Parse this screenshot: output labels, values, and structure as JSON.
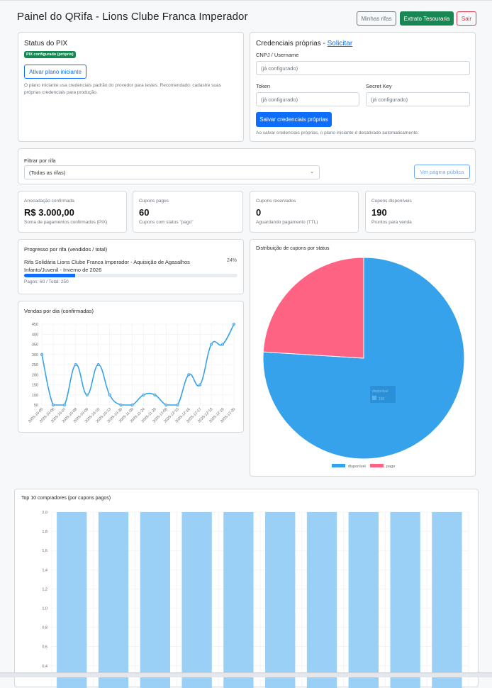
{
  "header": {
    "title": "Painel do QRifa - Lions Clube Franca Imperador",
    "buttons": {
      "my_raffles": "Minhas rifas",
      "treasury": "Extrato Tesouraria",
      "logout": "Sair"
    }
  },
  "pix_status": {
    "title": "Status do PIX",
    "badge": "PIX configurado (próprio)",
    "activate_button": "Ativar plano iniciante",
    "note": "O plano iniciante usa credenciais padrão do provedor para testes. Recomendado: cadastre suas próprias credenciais para produção."
  },
  "credentials": {
    "title": "Credenciais próprias - ",
    "link": "Solicitar",
    "cnpj_label": "CNPJ / Username",
    "cnpj_placeholder": "(já configurado)",
    "token_label": "Token",
    "token_placeholder": "(já configurado)",
    "secret_label": "Secret Key",
    "secret_placeholder": "(já configurado)",
    "save_button": "Salvar credenciais próprias",
    "note": "Ao salvar credenciais próprias, o plano iniciante é desativado automaticamente."
  },
  "filter": {
    "label": "Filtrar por rifa",
    "selected": "(Todas as rifas)",
    "public_button": "Ver página pública"
  },
  "stats": [
    {
      "label": "Arrecadação confirmada",
      "value": "R$ 3.000,00",
      "sub": "Soma de pagamentos confirmados (PIX)"
    },
    {
      "label": "Cupons pagos",
      "value": "60",
      "sub": "Cupons com status \"pago\""
    },
    {
      "label": "Cupons reservados",
      "value": "0",
      "sub": "Aguardando pagamento (TTL)"
    },
    {
      "label": "Cupons disponíveis",
      "value": "190",
      "sub": "Prontos para venda"
    }
  ],
  "progress": {
    "title": "Progresso por rifa (vendidos / total)",
    "raffle": "Rifa Solidária Lions Clube Franca Imperador - Aquisição de Agasalhos Infanto/Juvenil - Inverno de 2026",
    "percent_label": "24%",
    "percent": 24,
    "detail": "Pagos: 60 / Total: 250"
  },
  "colors": {
    "primary": "#0d6efd",
    "success": "#198754",
    "danger": "#dc3545",
    "line": "#36a2eb",
    "pie_blue": "#36a2eb",
    "pie_pink": "#ff6384",
    "bar": "#9ad0f5"
  },
  "chart_data": [
    {
      "type": "line",
      "title": "Vendas por dia (confirmadas)",
      "x": [
        "2025-10-05",
        "2025-10-06",
        "2025-10-07",
        "2025-10-08",
        "2025-10-09",
        "2025-10-10",
        "2025-10-13",
        "2025-10-30",
        "2025-11-09",
        "2025-11-24",
        "2025-11-28",
        "2025-12-08",
        "2025-12-15",
        "2025-12-16",
        "2025-12-17",
        "2025-12-18",
        "2025-12-19",
        "2025-12-20"
      ],
      "values": [
        300,
        50,
        50,
        250,
        100,
        250,
        100,
        50,
        50,
        100,
        100,
        50,
        50,
        200,
        150,
        350,
        350,
        450
      ],
      "ylim": [
        50,
        450
      ],
      "yticks": [
        "50",
        "100",
        "150",
        "200",
        "250",
        "300",
        "350",
        "400",
        "450"
      ],
      "grid": true
    },
    {
      "type": "pie",
      "title": "Distribuição de cupons por status",
      "labels": [
        "disponível",
        "pago"
      ],
      "values": [
        190,
        60
      ],
      "legend": "bottom",
      "tooltip": {
        "label": "disponível",
        "value": "190"
      }
    },
    {
      "type": "bar",
      "title": "Top 10 compradores (por cupons pagos)",
      "values": [
        2,
        2,
        2,
        2,
        2,
        2,
        2,
        2,
        2,
        2
      ],
      "ylim": [
        0,
        2
      ],
      "yticks": [
        "2,0",
        "1,8",
        "1,6",
        "1,4",
        "1,2",
        "1,0",
        "0,8",
        "0,6",
        "0,4"
      ],
      "grid": true
    }
  ]
}
